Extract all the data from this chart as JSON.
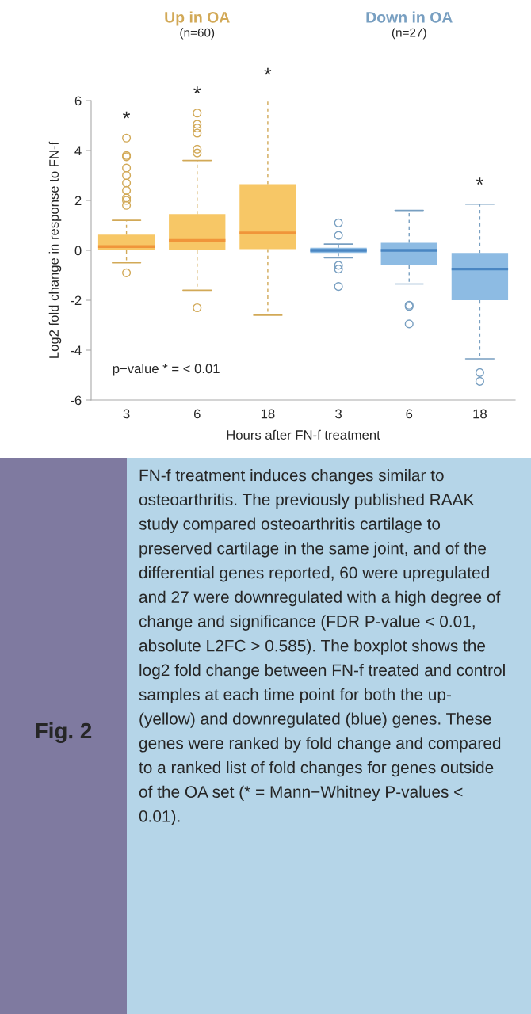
{
  "chart_data": {
    "type": "box",
    "categories": [
      "3",
      "6",
      "18",
      "3",
      "6",
      "18"
    ],
    "xlabel": "Hours after FN-f treatment",
    "ylabel": "Log2 fold change in response to FN-f",
    "ylim": [
      -6,
      6
    ],
    "yticks": [
      -6,
      -4,
      -2,
      0,
      2,
      4,
      6
    ],
    "grid": false,
    "legend": false,
    "series": [
      {
        "name": "Up in OA",
        "color": "#f7c766",
        "boxes": [
          {
            "low": -0.5,
            "q1": 0.0,
            "median": 0.15,
            "q3": 0.63,
            "high": 1.2,
            "outliers": [
              4.5,
              3.8,
              3.75,
              3.3,
              3.0,
              2.7,
              2.4,
              2.1,
              2.0,
              1.8,
              -0.9
            ]
          },
          {
            "low": -1.6,
            "q1": 0.0,
            "median": 0.4,
            "q3": 1.45,
            "high": 3.6,
            "outliers": [
              5.5,
              5.05,
              4.9,
              4.7,
              4.05,
              3.9,
              -2.3
            ]
          },
          {
            "low": -2.6,
            "q1": 0.05,
            "median": 0.7,
            "q3": 2.65,
            "high": 6.25
          },
          null,
          null,
          null
        ]
      },
      {
        "name": "Down in OA",
        "color": "#8dbbe3",
        "boxes": [
          null,
          null,
          null,
          {
            "low": -0.3,
            "q1": -0.1,
            "median": 0.0,
            "q3": 0.1,
            "high": 0.25,
            "outliers": [
              1.1,
              0.6,
              -0.6,
              -0.75,
              -1.45
            ]
          },
          {
            "low": -1.35,
            "q1": -0.6,
            "median": 0.0,
            "q3": 0.3,
            "high": 1.6,
            "outliers": [
              -2.2,
              -2.25,
              -2.95
            ]
          },
          {
            "low": -4.35,
            "q1": -2.0,
            "median": -0.75,
            "q3": -0.1,
            "high": 1.85,
            "outliers": [
              -4.9,
              -5.25
            ]
          }
        ]
      }
    ],
    "annotations": [
      "(n=60)",
      "(n=27)",
      "p−value * = < 0.01",
      "FN-f treatment induces changes similar to osteoarthritis. The previously published RAAK study compared osteoarthritis cartilage to preserved cartilage in the same joint, and of the differential genes reported, 60 were upregulated and 27 were downregulated with a high degree of change and significance (FDR P-value < 0.01, absolute L2FC > 0.585). The boxplot shows the log2 fold change between FN-f treated and control samples at each time point for both the up- (yellow) and downregulated (blue) genes. These genes were ranked by fold change and compared to a ranked list of fold changes for genes outside of the OA set (* = Mann−Whitney P-values < 0.01).",
      "Fig. 2",
      "*",
      "*",
      "*",
      "*"
    ]
  }
}
